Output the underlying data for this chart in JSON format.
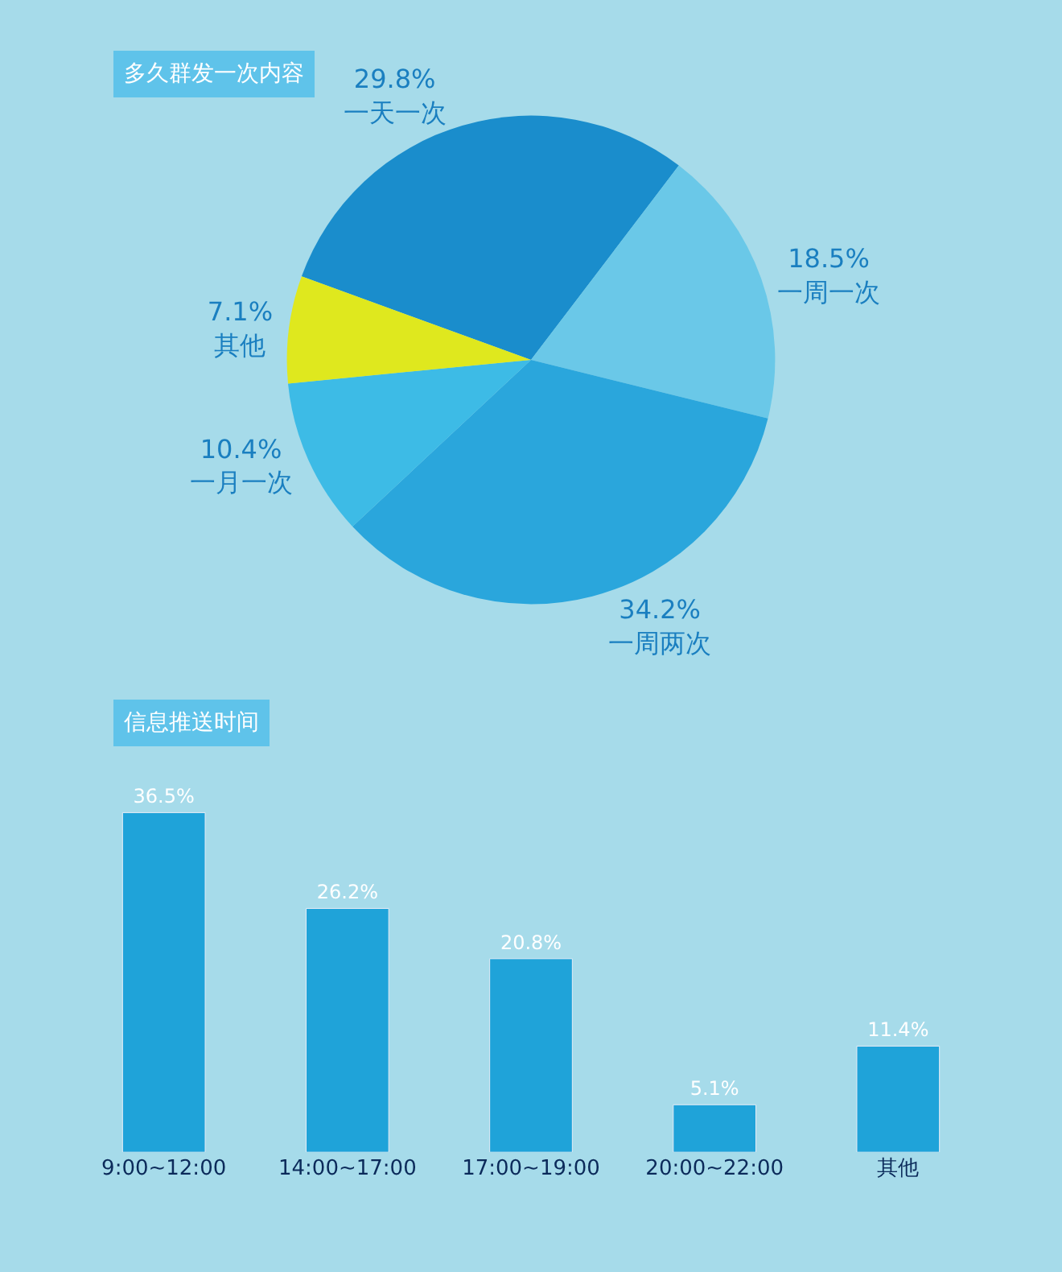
{
  "chart_data": [
    {
      "type": "pie",
      "title": "多久群发一次内容",
      "categories": [
        "一天一次",
        "一周一次",
        "一周两次",
        "一月一次",
        "其他"
      ],
      "values": [
        29.8,
        18.5,
        34.2,
        10.4,
        7.1
      ],
      "colors": [
        "#1a8dcc",
        "#6ac8e8",
        "#2aa6dc",
        "#3dbbe6",
        "#dfe81e"
      ],
      "value_labels": [
        "29.8%",
        "18.5%",
        "34.2%",
        "10.4%",
        "7.1%"
      ]
    },
    {
      "type": "bar",
      "title": "信息推送时间",
      "categories": [
        "9:00~12:00",
        "14:00~17:00",
        "17:00~19:00",
        "20:00~22:00",
        "其他"
      ],
      "values": [
        36.5,
        26.2,
        20.8,
        5.1,
        11.4
      ],
      "color": "#1fa3d9",
      "value_labels": [
        "36.5%",
        "26.2%",
        "20.8%",
        "5.1%",
        "11.4%"
      ]
    }
  ]
}
